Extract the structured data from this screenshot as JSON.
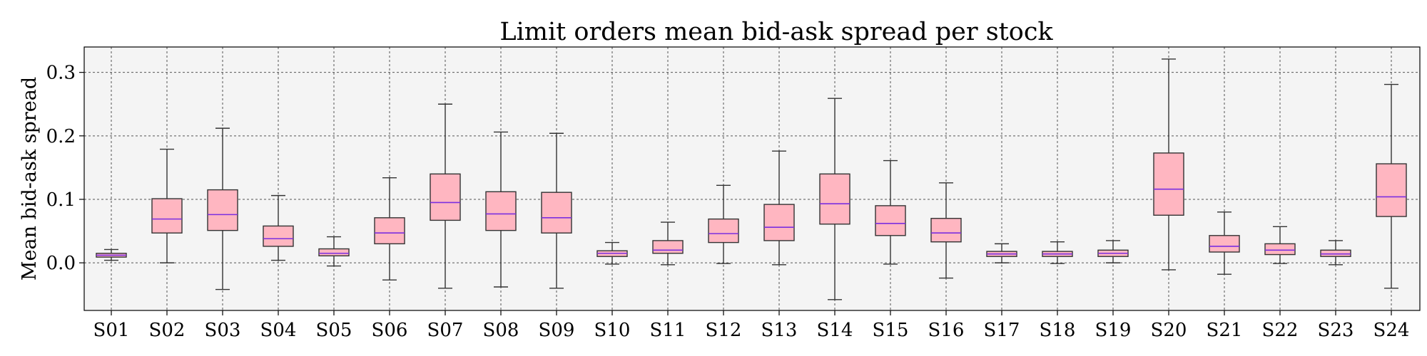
{
  "chart_data": {
    "type": "box",
    "title": "Limit orders mean bid-ask spread per stock",
    "xlabel": "",
    "ylabel": "Mean bid-ask spread",
    "ylim": [
      -0.075,
      0.34
    ],
    "yticks": [
      0.0,
      0.1,
      0.2,
      0.3
    ],
    "ytick_labels": [
      "0.0",
      "0.1",
      "0.2",
      "0.3"
    ],
    "grid": true,
    "categories": [
      "S01",
      "S02",
      "S03",
      "S04",
      "S05",
      "S06",
      "S07",
      "S08",
      "S09",
      "S10",
      "S11",
      "S12",
      "S13",
      "S14",
      "S15",
      "S16",
      "S17",
      "S18",
      "S19",
      "S20",
      "S21",
      "S22",
      "S23",
      "S24"
    ],
    "boxes": [
      {
        "whisker_low": 0.004,
        "q1": 0.009,
        "median": 0.012,
        "q3": 0.015,
        "whisker_high": 0.021
      },
      {
        "whisker_low": 0.0,
        "q1": 0.047,
        "median": 0.069,
        "q3": 0.101,
        "whisker_high": 0.179
      },
      {
        "whisker_low": -0.042,
        "q1": 0.051,
        "median": 0.076,
        "q3": 0.115,
        "whisker_high": 0.212
      },
      {
        "whisker_low": 0.004,
        "q1": 0.026,
        "median": 0.038,
        "q3": 0.058,
        "whisker_high": 0.106
      },
      {
        "whisker_low": -0.005,
        "q1": 0.011,
        "median": 0.015,
        "q3": 0.022,
        "whisker_high": 0.041
      },
      {
        "whisker_low": -0.027,
        "q1": 0.03,
        "median": 0.047,
        "q3": 0.071,
        "whisker_high": 0.134
      },
      {
        "whisker_low": -0.04,
        "q1": 0.067,
        "median": 0.095,
        "q3": 0.14,
        "whisker_high": 0.25
      },
      {
        "whisker_low": -0.038,
        "q1": 0.051,
        "median": 0.077,
        "q3": 0.112,
        "whisker_high": 0.206
      },
      {
        "whisker_low": -0.04,
        "q1": 0.047,
        "median": 0.071,
        "q3": 0.111,
        "whisker_high": 0.204
      },
      {
        "whisker_low": -0.002,
        "q1": 0.01,
        "median": 0.015,
        "q3": 0.019,
        "whisker_high": 0.032
      },
      {
        "whisker_low": -0.003,
        "q1": 0.015,
        "median": 0.02,
        "q3": 0.035,
        "whisker_high": 0.064
      },
      {
        "whisker_low": -0.001,
        "q1": 0.032,
        "median": 0.046,
        "q3": 0.069,
        "whisker_high": 0.122
      },
      {
        "whisker_low": -0.003,
        "q1": 0.035,
        "median": 0.056,
        "q3": 0.092,
        "whisker_high": 0.176
      },
      {
        "whisker_low": -0.058,
        "q1": 0.061,
        "median": 0.093,
        "q3": 0.14,
        "whisker_high": 0.259
      },
      {
        "whisker_low": -0.002,
        "q1": 0.043,
        "median": 0.062,
        "q3": 0.09,
        "whisker_high": 0.161
      },
      {
        "whisker_low": -0.024,
        "q1": 0.033,
        "median": 0.047,
        "q3": 0.07,
        "whisker_high": 0.126
      },
      {
        "whisker_low": 0.0,
        "q1": 0.01,
        "median": 0.014,
        "q3": 0.018,
        "whisker_high": 0.03
      },
      {
        "whisker_low": -0.001,
        "q1": 0.01,
        "median": 0.014,
        "q3": 0.018,
        "whisker_high": 0.033
      },
      {
        "whisker_low": 0.0,
        "q1": 0.01,
        "median": 0.015,
        "q3": 0.02,
        "whisker_high": 0.035
      },
      {
        "whisker_low": -0.011,
        "q1": 0.075,
        "median": 0.116,
        "q3": 0.173,
        "whisker_high": 0.321
      },
      {
        "whisker_low": -0.018,
        "q1": 0.017,
        "median": 0.026,
        "q3": 0.043,
        "whisker_high": 0.08
      },
      {
        "whisker_low": -0.001,
        "q1": 0.013,
        "median": 0.02,
        "q3": 0.03,
        "whisker_high": 0.057
      },
      {
        "whisker_low": -0.003,
        "q1": 0.01,
        "median": 0.014,
        "q3": 0.02,
        "whisker_high": 0.035
      },
      {
        "whisker_low": -0.04,
        "q1": 0.073,
        "median": 0.104,
        "q3": 0.156,
        "whisker_high": 0.281
      }
    ],
    "colors": {
      "box_fill": "#ffb6c1",
      "box_edge": "#333333",
      "median": "#7b2fe0",
      "whisker": "#333333",
      "plot_background": "#f4f4f4",
      "grid": "#555555"
    }
  }
}
